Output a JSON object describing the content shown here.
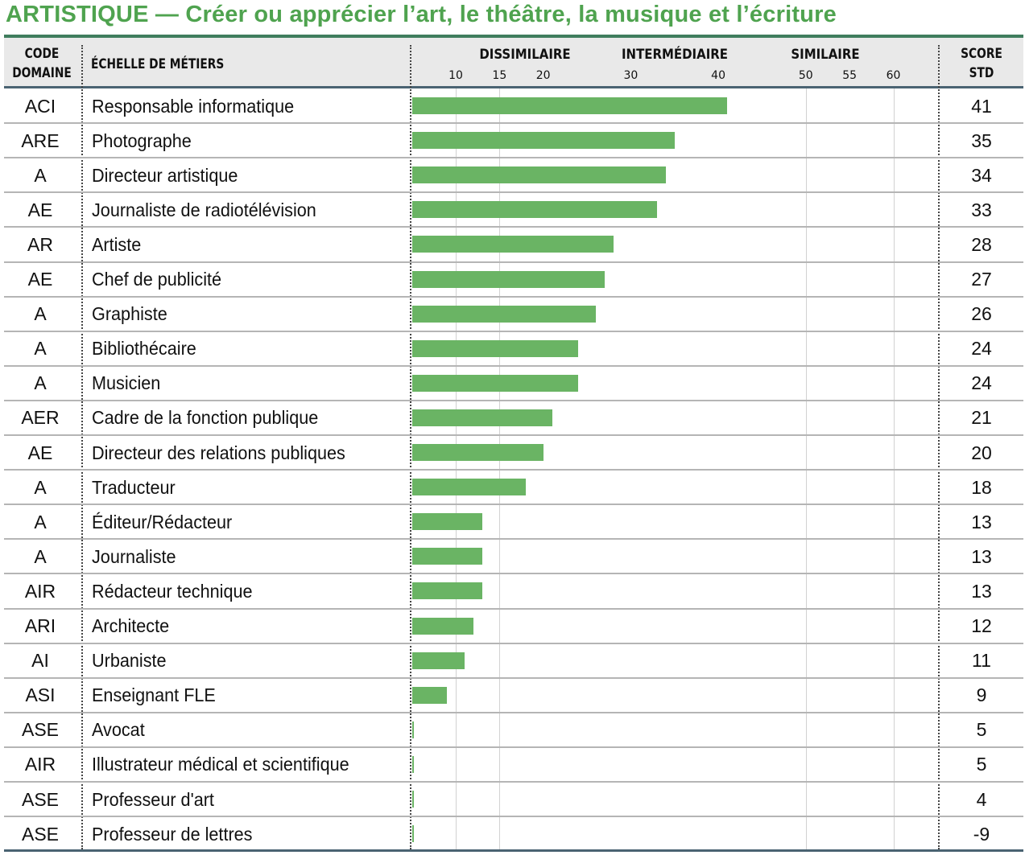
{
  "title": "ARTISTIQUE — Créer ou apprécier l’art, le théâtre, la musique et l’écriture",
  "header": {
    "code_line1": "CODE",
    "code_line2": "DOMAINE",
    "scale_label": "ÉCHELLE DE MÉTIERS",
    "score_line1": "SCORE",
    "score_line2": "STD",
    "zones": [
      "DISSIMILAIRE",
      "INTERMÉDIAIRE",
      "SIMILAIRE"
    ]
  },
  "colors": {
    "title": "#4fa34f",
    "bar": "#6ab464",
    "header_bg": "#e9e9e9",
    "rule": "#4a6372"
  },
  "chart_data": {
    "type": "bar",
    "orientation": "horizontal",
    "x_ticks": [
      10,
      15,
      20,
      30,
      40,
      50,
      55,
      60
    ],
    "grid": true,
    "rows": [
      {
        "code": "ACI",
        "label": "Responsable informatique",
        "value": 41
      },
      {
        "code": "ARE",
        "label": "Photographe",
        "value": 35
      },
      {
        "code": "A",
        "label": "Directeur artistique",
        "value": 34
      },
      {
        "code": "AE",
        "label": "Journaliste de radiotélévision",
        "value": 33
      },
      {
        "code": "AR",
        "label": "Artiste",
        "value": 28
      },
      {
        "code": "AE",
        "label": "Chef de publicité",
        "value": 27
      },
      {
        "code": "A",
        "label": "Graphiste",
        "value": 26
      },
      {
        "code": "A",
        "label": "Bibliothécaire",
        "value": 24
      },
      {
        "code": "A",
        "label": "Musicien",
        "value": 24
      },
      {
        "code": "AER",
        "label": "Cadre de la fonction publique",
        "value": 21
      },
      {
        "code": "AE",
        "label": "Directeur des relations publiques",
        "value": 20
      },
      {
        "code": "A",
        "label": "Traducteur",
        "value": 18
      },
      {
        "code": "A",
        "label": "Éditeur/Rédacteur",
        "value": 13
      },
      {
        "code": "A",
        "label": "Journaliste",
        "value": 13
      },
      {
        "code": "AIR",
        "label": "Rédacteur technique",
        "value": 13
      },
      {
        "code": "ARI",
        "label": "Architecte",
        "value": 12
      },
      {
        "code": "AI",
        "label": "Urbaniste",
        "value": 11
      },
      {
        "code": "ASI",
        "label": "Enseignant FLE",
        "value": 9
      },
      {
        "code": "ASE",
        "label": "Avocat",
        "value": 5
      },
      {
        "code": "AIR",
        "label": "Illustrateur médical et scientifique",
        "value": 5
      },
      {
        "code": "ASE",
        "label": "Professeur d'art",
        "value": 4
      },
      {
        "code": "ASE",
        "label": "Professeur de lettres",
        "value": -9
      }
    ]
  }
}
